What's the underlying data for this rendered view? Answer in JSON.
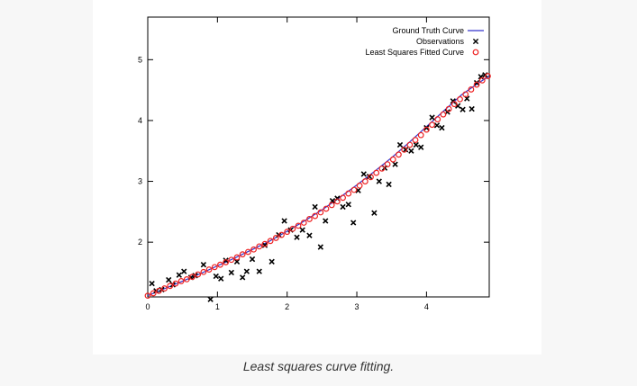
{
  "caption": "Least squares curve fitting.",
  "chart_data": {
    "type": "scatter",
    "title": "",
    "xlabel": "",
    "ylabel": "",
    "xlim": [
      0,
      4.9
    ],
    "ylim": [
      1.1,
      5.7
    ],
    "xticks": [
      0,
      1,
      2,
      3,
      4
    ],
    "yticks": [
      2,
      3,
      4,
      5
    ],
    "grid": false,
    "legend_position": "top-right",
    "series": [
      {
        "name": "Ground Truth Curve",
        "kind": "line",
        "color": "#3333cc",
        "x": [
          0,
          0.25,
          0.5,
          0.75,
          1,
          1.25,
          1.5,
          1.75,
          2,
          2.25,
          2.5,
          2.75,
          3,
          3.25,
          3.5,
          3.75,
          4,
          4.25,
          4.5,
          4.75,
          4.9
        ],
        "y": [
          1.12,
          1.24,
          1.36,
          1.48,
          1.61,
          1.74,
          1.88,
          2.02,
          2.18,
          2.35,
          2.53,
          2.73,
          2.94,
          3.16,
          3.39,
          3.64,
          3.9,
          4.16,
          4.42,
          4.62,
          4.73
        ]
      },
      {
        "name": "Observations",
        "kind": "points",
        "marker": "x",
        "color": "#000000",
        "x": [
          0.06,
          0.12,
          0.2,
          0.3,
          0.36,
          0.45,
          0.52,
          0.62,
          0.68,
          0.8,
          0.9,
          0.98,
          1.05,
          1.12,
          1.2,
          1.28,
          1.36,
          1.42,
          1.5,
          1.6,
          1.68,
          1.78,
          1.88,
          1.96,
          2.05,
          2.14,
          2.22,
          2.32,
          2.4,
          2.48,
          2.55,
          2.65,
          2.72,
          2.8,
          2.88,
          2.95,
          3.02,
          3.1,
          3.18,
          3.25,
          3.32,
          3.4,
          3.46,
          3.55,
          3.62,
          3.7,
          3.78,
          3.85,
          3.92,
          4.0,
          4.08,
          4.15,
          4.22,
          4.3,
          4.38,
          4.45,
          4.52,
          4.58,
          4.65,
          4.72,
          4.78,
          4.84
        ],
        "y": [
          1.32,
          1.2,
          1.22,
          1.38,
          1.3,
          1.46,
          1.52,
          1.42,
          1.45,
          1.63,
          1.06,
          1.44,
          1.4,
          1.7,
          1.5,
          1.68,
          1.42,
          1.52,
          1.72,
          1.52,
          1.95,
          1.68,
          2.12,
          2.35,
          2.2,
          2.08,
          2.2,
          2.11,
          2.58,
          1.92,
          2.35,
          2.68,
          2.72,
          2.58,
          2.62,
          2.32,
          2.85,
          3.12,
          3.08,
          2.48,
          3.0,
          3.22,
          2.95,
          3.28,
          3.6,
          3.52,
          3.5,
          3.6,
          3.56,
          3.88,
          4.05,
          3.92,
          3.88,
          4.14,
          4.32,
          4.24,
          4.18,
          4.36,
          4.19,
          4.62,
          4.72,
          4.75
        ]
      },
      {
        "name": "Least Squares Fitted Curve",
        "kind": "points",
        "marker": "circle",
        "color": "#ee2222",
        "x": [
          0,
          0.08,
          0.16,
          0.24,
          0.32,
          0.4,
          0.48,
          0.56,
          0.64,
          0.72,
          0.8,
          0.88,
          0.96,
          1.04,
          1.12,
          1.2,
          1.28,
          1.36,
          1.44,
          1.52,
          1.6,
          1.68,
          1.76,
          1.84,
          1.92,
          2.0,
          2.08,
          2.16,
          2.24,
          2.32,
          2.4,
          2.48,
          2.56,
          2.64,
          2.72,
          2.8,
          2.88,
          2.96,
          3.04,
          3.12,
          3.2,
          3.28,
          3.36,
          3.44,
          3.52,
          3.6,
          3.68,
          3.76,
          3.84,
          3.92,
          4.0,
          4.08,
          4.16,
          4.24,
          4.32,
          4.4,
          4.48,
          4.56,
          4.64,
          4.72,
          4.8,
          4.88
        ],
        "y": [
          1.12,
          1.16,
          1.2,
          1.24,
          1.28,
          1.32,
          1.36,
          1.39,
          1.43,
          1.47,
          1.51,
          1.55,
          1.59,
          1.63,
          1.67,
          1.71,
          1.75,
          1.8,
          1.84,
          1.88,
          1.93,
          1.97,
          2.02,
          2.07,
          2.12,
          2.17,
          2.22,
          2.27,
          2.32,
          2.38,
          2.43,
          2.49,
          2.55,
          2.61,
          2.67,
          2.73,
          2.8,
          2.86,
          2.93,
          3.0,
          3.07,
          3.14,
          3.21,
          3.28,
          3.36,
          3.44,
          3.52,
          3.6,
          3.68,
          3.76,
          3.85,
          3.93,
          4.02,
          4.1,
          4.19,
          4.27,
          4.35,
          4.43,
          4.51,
          4.59,
          4.66,
          4.73
        ]
      }
    ]
  }
}
